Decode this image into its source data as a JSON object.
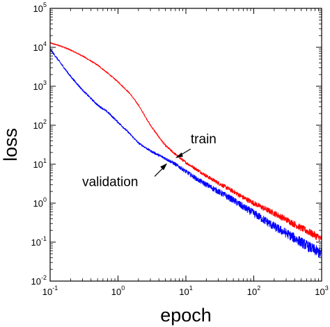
{
  "chart_data": {
    "type": "line",
    "title": "",
    "xlabel": "epoch",
    "ylabel": "loss",
    "xscale": "log",
    "yscale": "log",
    "xlim": [
      0.1,
      1000
    ],
    "ylim": [
      0.01,
      100000
    ],
    "x_ticks": [
      {
        "base": "10",
        "exp": "-1",
        "value": 0.1
      },
      {
        "base": "10",
        "exp": "0",
        "value": 1
      },
      {
        "base": "10",
        "exp": "1",
        "value": 10
      },
      {
        "base": "10",
        "exp": "2",
        "value": 100
      },
      {
        "base": "10",
        "exp": "3",
        "value": 1000
      }
    ],
    "y_ticks": [
      {
        "base": "10",
        "exp": "-2",
        "value": 0.01
      },
      {
        "base": "10",
        "exp": "-1",
        "value": 0.1
      },
      {
        "base": "10",
        "exp": "0",
        "value": 1
      },
      {
        "base": "10",
        "exp": "1",
        "value": 10
      },
      {
        "base": "10",
        "exp": "2",
        "value": 100
      },
      {
        "base": "10",
        "exp": "3",
        "value": 1000
      },
      {
        "base": "10",
        "exp": "4",
        "value": 10000
      },
      {
        "base": "10",
        "exp": "5",
        "value": 100000
      }
    ],
    "grid": false,
    "legend": "none",
    "series": [
      {
        "name": "train",
        "color": "#ff0000",
        "x": [
          0.1,
          0.15,
          0.2,
          0.3,
          0.5,
          0.7,
          1.0,
          1.5,
          2.0,
          3.0,
          4.0,
          5.0,
          7.0,
          10,
          15,
          20,
          30,
          50,
          70,
          100,
          150,
          200,
          300,
          500,
          700,
          1000
        ],
        "y": [
          13000,
          10500,
          8500,
          6000,
          3500,
          2200,
          1300,
          650,
          330,
          100,
          50,
          30,
          18,
          11,
          7,
          5,
          3.3,
          2.0,
          1.4,
          1.0,
          0.7,
          0.55,
          0.38,
          0.23,
          0.17,
          0.12
        ]
      },
      {
        "name": "validation",
        "color": "#0000ff",
        "x": [
          0.1,
          0.15,
          0.2,
          0.3,
          0.5,
          0.7,
          1.0,
          1.5,
          2.0,
          3.0,
          4.0,
          5.0,
          7.0,
          10,
          15,
          20,
          30,
          50,
          70,
          100,
          150,
          200,
          300,
          500,
          700,
          1000
        ],
        "y": [
          9000,
          3500,
          1800,
          800,
          330,
          220,
          120,
          60,
          35,
          22,
          17,
          14,
          10,
          6.5,
          4,
          3,
          2.0,
          1.2,
          0.8,
          0.55,
          0.35,
          0.25,
          0.17,
          0.1,
          0.07,
          0.05
        ]
      }
    ],
    "annotations": [
      {
        "text": "train",
        "x": 7,
        "y": 15
      },
      {
        "text": "validation",
        "x": 5.3,
        "y": 12
      }
    ]
  }
}
